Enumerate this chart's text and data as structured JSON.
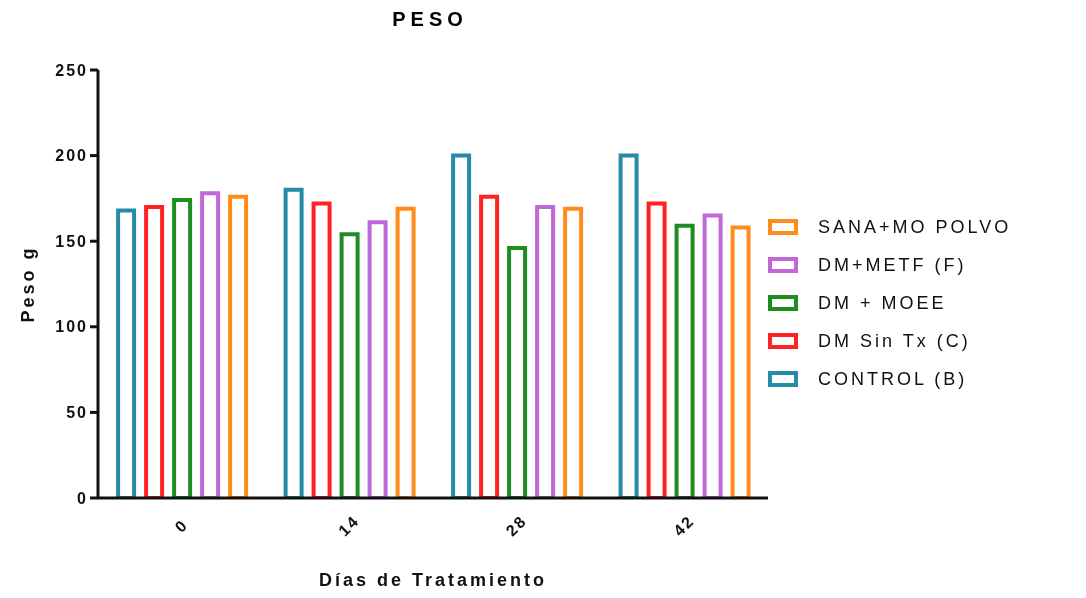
{
  "chart_data": {
    "type": "bar",
    "title": "PESO",
    "xlabel": "Días de Tratamiento",
    "ylabel": "Peso g",
    "categories": [
      "0",
      "14",
      "28",
      "42"
    ],
    "series": [
      {
        "name": "CONTROL (B)",
        "color": "#268ba6",
        "values": [
          168,
          180,
          200,
          200
        ]
      },
      {
        "name": "DM Sin Tx (C)",
        "color": "#ff2222",
        "values": [
          170,
          172,
          176,
          172
        ]
      },
      {
        "name": "DM + MOEE",
        "color": "#1e8c1e",
        "values": [
          174,
          154,
          146,
          159
        ]
      },
      {
        "name": "DM+METF (F)",
        "color": "#c068d8",
        "values": [
          178,
          161,
          170,
          165
        ]
      },
      {
        "name": "SANA+MO POLVO",
        "color": "#ff8c1a",
        "values": [
          176,
          169,
          169,
          158
        ]
      }
    ],
    "ylim": [
      0,
      250
    ],
    "yticks": [
      0,
      50,
      100,
      150,
      200,
      250
    ],
    "grid": false,
    "legend": "right"
  }
}
